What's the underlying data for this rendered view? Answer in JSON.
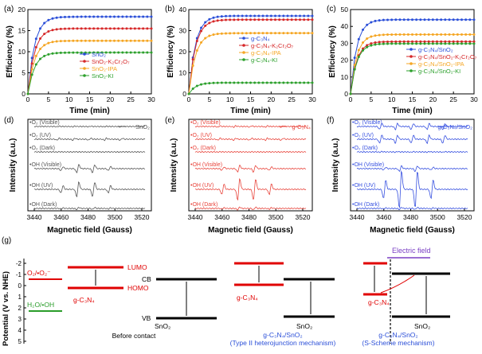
{
  "chart_data": [
    {
      "panel": "(a)",
      "type": "line",
      "xlabel": "Time (min)",
      "ylabel": "Efficiency (%)",
      "xlim": [
        0,
        30
      ],
      "ylim": [
        0,
        20
      ],
      "xticks": [
        0,
        5,
        10,
        15,
        20,
        25,
        30
      ],
      "yticks": [
        0,
        5,
        10,
        15,
        20
      ],
      "series": [
        {
          "name": "SnO2",
          "final": 18.3,
          "color": "#2b4fd8"
        },
        {
          "name": "SnO2-K2Cr2O7",
          "final": 15.5,
          "color": "#d62728"
        },
        {
          "name": "SnO2-IPA",
          "final": 12.6,
          "color": "#f5a623"
        },
        {
          "name": "SnO2-KI",
          "final": 9.8,
          "color": "#2ca02c"
        }
      ]
    },
    {
      "panel": "(b)",
      "type": "line",
      "xlabel": "Time (min)",
      "ylabel": "Efficiency (%)",
      "xlim": [
        0,
        30
      ],
      "ylim": [
        0,
        40
      ],
      "xticks": [
        0,
        5,
        10,
        15,
        20,
        25,
        30
      ],
      "yticks": [
        0,
        10,
        20,
        30,
        40
      ],
      "series": [
        {
          "name": "g-C3N4",
          "final": 37.0,
          "color": "#2b4fd8"
        },
        {
          "name": "g-C3N4-K2Cr2O7",
          "final": 35.2,
          "color": "#d62728"
        },
        {
          "name": "g-C3N4-IPA",
          "final": 28.8,
          "color": "#f5a623"
        },
        {
          "name": "g-C3N4-KI",
          "final": 5.3,
          "color": "#2ca02c"
        }
      ]
    },
    {
      "panel": "(c)",
      "type": "line",
      "xlabel": "Time (min)",
      "ylabel": "Efficiency (%)",
      "xlim": [
        0,
        30
      ],
      "ylim": [
        0,
        50
      ],
      "xticks": [
        0,
        5,
        10,
        15,
        20,
        25,
        30
      ],
      "yticks": [
        0,
        10,
        20,
        30,
        40,
        50
      ],
      "series": [
        {
          "name": "g-C3N4/SnO2",
          "final": 44.0,
          "color": "#2b4fd8"
        },
        {
          "name": "g-C3N4/SnO2-K2Cr2O7",
          "final": 31.0,
          "color": "#d62728"
        },
        {
          "name": "g-C3N4/SnO2-IPA",
          "final": 35.2,
          "color": "#f5a623"
        },
        {
          "name": "g-C3N4/SnO2-KI",
          "final": 29.8,
          "color": "#2ca02c"
        }
      ]
    }
  ],
  "line_legends": [
    [
      "SnO₂",
      "SnO₂-K₂Cr₂O₇",
      "SnO₂-IPA",
      "SnO₂-KI"
    ],
    [
      "g-C₃N₄",
      "g-C₃N₄-K₂Cr₂O₇",
      "g-C₃N₄-IPA",
      "g-C₃N₄-KI"
    ],
    [
      "g-C₃N₄/SnO₂",
      "g-C₃N₄/SnO₂-K₂Cr₂O₇",
      "g-C₃N₄/SnO₂-IPA",
      "g-C₃N₄/SnO₂-KI"
    ]
  ],
  "epr": [
    {
      "panel": "(d)",
      "legend": "SnO₂",
      "color": "#555555",
      "labels": [
        "•O₂ (Visible)",
        "•O₂ (UV)",
        "•O₂ (Dark)",
        "•OH (Visible)",
        "•OH (UV)",
        "•OH (Dark)"
      ]
    },
    {
      "panel": "(e)",
      "legend": "g-C₃N₄",
      "color": "#e8453c",
      "labels": [
        "•O₂ (Visible)",
        "•O₂ (UV)",
        "•O₂ (Dark)",
        "•OH (Visible)",
        "•OH (UV)",
        "•OH (Dark)"
      ]
    },
    {
      "panel": "(f)",
      "legend": "g-C₃N₄/SnO₂",
      "color": "#3650e0",
      "labels": [
        "•O₂ (Visible)",
        "•O₂ (UV)",
        "•O₂ (Dark)",
        "•OH (Visible)",
        "•OH (UV)",
        "•OH (Dark)"
      ]
    }
  ],
  "epr_axis": {
    "xlabel": "Magnetic field (Gauss)",
    "ylabel": "Intensity (a.u.)",
    "xticks": [
      "3440",
      "3460",
      "3480",
      "3500",
      "3520"
    ]
  },
  "scheme": {
    "panel": "(g)",
    "ylabel": "Potential (V vs. NHE)",
    "yticks": [
      "-2",
      "-1",
      "0",
      "1",
      "2",
      "3",
      "4",
      "5"
    ],
    "o2_label": "O₂/•O₂⁻",
    "h2o_label": "H₂O/•OH",
    "lumo": "LUMO",
    "homo": "HOMO",
    "cb": "CB",
    "vb": "VB",
    "gcn": "g-C₃N₄",
    "sno2": "SnO₂",
    "before": "Before contact",
    "typeII_title": "g-C₃N₄/SnO₂",
    "typeII_mech": "(Type II heterojunction mechanism)",
    "sscheme_title": "g-C₃N₄/SnO₂",
    "sscheme_mech": "(S-Scheme mechanism)",
    "efield": "Electric field"
  },
  "panel_labels": [
    "(a)",
    "(b)",
    "(c)",
    "(d)",
    "(e)",
    "(f)",
    "(g)"
  ]
}
